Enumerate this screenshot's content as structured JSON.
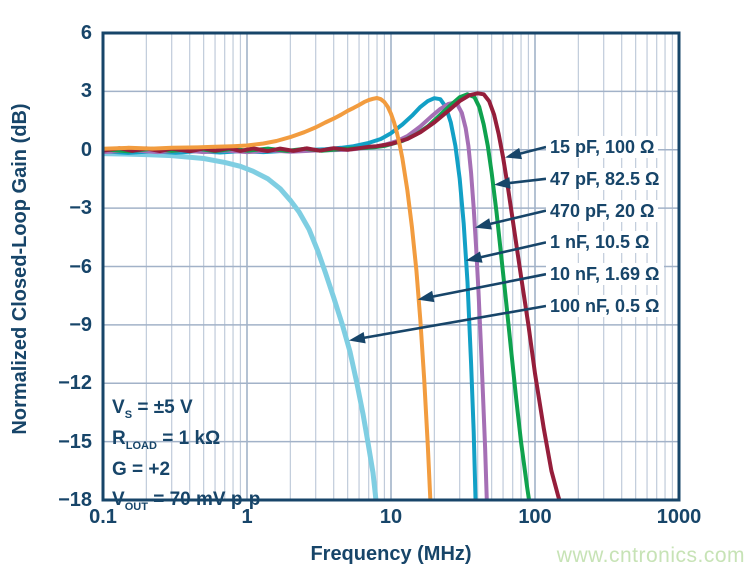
{
  "watermark": "www.cntronics.com",
  "colors": {
    "axis": "#174569",
    "grid_major": "#a2b2c8",
    "grid_minor": "#c0cbda",
    "watermark": "#c7e3b6",
    "background": "#ffffff"
  },
  "axes": {
    "x_title": "Frequency (MHz)",
    "y_title": "Normalized Closed-Loop Gain (dB)",
    "x_tick_labels": [
      "0.1",
      "1",
      "10",
      "100",
      "1000"
    ],
    "y_tick_labels": [
      "6",
      "3",
      "0",
      "−3",
      "−6",
      "−9",
      "−12",
      "−15",
      "−18"
    ]
  },
  "conditions": {
    "lines": [
      {
        "pre": "V",
        "sub": "S",
        "post": " = ±5 V"
      },
      {
        "pre": "R",
        "sub": "LOAD",
        "post": " = 1 kΩ"
      },
      {
        "pre": "G",
        "sub": "",
        "post": " = +2"
      },
      {
        "pre": "V",
        "sub": "OUT",
        "post": " = 70 mV p-p"
      }
    ]
  },
  "chart_data": {
    "type": "line",
    "title": "",
    "xlabel": "Frequency (MHz)",
    "ylabel": "Normalized Closed-Loop Gain (dB)",
    "x_scale": "log",
    "xlim": [
      0.1,
      1000
    ],
    "ylim": [
      -18,
      6
    ],
    "x_ticks": [
      0.1,
      1,
      10,
      100,
      1000
    ],
    "y_ticks": [
      6,
      3,
      0,
      -3,
      -6,
      -9,
      -12,
      -15,
      -18
    ],
    "grid": "major horizontal every 3 dB; log minor vertical gridlines",
    "legend_position": "right-side callout labels with arrows to curves",
    "annotations": [
      "VS = ±5 V",
      "RLOAD = 1 kΩ",
      "G = +2",
      "VOUT = 70 mV p-p"
    ],
    "series": [
      {
        "label": "15 pF, 100 Ω",
        "color": "#951E3B",
        "z": 4,
        "arrow_target": {
          "f_mhz": 62,
          "db": -0.4
        },
        "points": [
          [
            0.1,
            -0.05
          ],
          [
            0.13,
            0.08
          ],
          [
            0.16,
            -0.06
          ],
          [
            0.2,
            0.07
          ],
          [
            0.25,
            -0.07
          ],
          [
            0.3,
            0.06
          ],
          [
            0.4,
            -0.08
          ],
          [
            0.5,
            0.07
          ],
          [
            0.6,
            -0.05
          ],
          [
            0.75,
            0.08
          ],
          [
            0.9,
            -0.06
          ],
          [
            1.1,
            0.07
          ],
          [
            1.4,
            -0.07
          ],
          [
            1.7,
            0.06
          ],
          [
            2.1,
            -0.06
          ],
          [
            2.6,
            0.07
          ],
          [
            3.2,
            -0.05
          ],
          [
            4,
            0.08
          ],
          [
            5,
            0.0
          ],
          [
            6,
            0.08
          ],
          [
            7,
            0.15
          ],
          [
            8,
            0.18
          ],
          [
            10,
            0.3
          ],
          [
            13,
            0.55
          ],
          [
            16,
            0.9
          ],
          [
            20,
            1.4
          ],
          [
            25,
            2.0
          ],
          [
            30,
            2.5
          ],
          [
            35,
            2.8
          ],
          [
            40,
            2.9
          ],
          [
            44,
            2.85
          ],
          [
            48,
            2.5
          ],
          [
            52,
            1.8
          ],
          [
            56,
            0.8
          ],
          [
            60,
            -0.4
          ],
          [
            65,
            -2.0
          ],
          [
            70,
            -3.6
          ],
          [
            80,
            -6.5
          ],
          [
            90,
            -9.0
          ],
          [
            100,
            -11.5
          ],
          [
            115,
            -14.3
          ],
          [
            130,
            -16.5
          ],
          [
            145,
            -17.8
          ],
          [
            155,
            -18.5
          ]
        ]
      },
      {
        "label": "47 pF, 82.5 Ω",
        "color": "#0FA24E",
        "z": 3,
        "arrow_target": {
          "f_mhz": 52,
          "db": -1.8
        },
        "points": [
          [
            0.1,
            0.02
          ],
          [
            0.15,
            -0.08
          ],
          [
            0.22,
            0.05
          ],
          [
            0.3,
            -0.06
          ],
          [
            0.45,
            0.06
          ],
          [
            0.6,
            -0.07
          ],
          [
            0.8,
            0.05
          ],
          [
            1,
            -0.05
          ],
          [
            1.4,
            0.06
          ],
          [
            1.9,
            -0.06
          ],
          [
            2.5,
            0.05
          ],
          [
            3.3,
            -0.05
          ],
          [
            4.5,
            0.04
          ],
          [
            6,
            0.08
          ],
          [
            7.5,
            0.12
          ],
          [
            9,
            0.2
          ],
          [
            12,
            0.45
          ],
          [
            15,
            0.8
          ],
          [
            18,
            1.2
          ],
          [
            22,
            1.8
          ],
          [
            26,
            2.3
          ],
          [
            30,
            2.7
          ],
          [
            34,
            2.85
          ],
          [
            38,
            2.7
          ],
          [
            41,
            2.2
          ],
          [
            44,
            1.3
          ],
          [
            47,
            0.2
          ],
          [
            50,
            -1.2
          ],
          [
            54,
            -3.2
          ],
          [
            58,
            -5.3
          ],
          [
            63,
            -7.8
          ],
          [
            68,
            -10.2
          ],
          [
            74,
            -12.8
          ],
          [
            80,
            -15.0
          ],
          [
            88,
            -17.3
          ],
          [
            93,
            -18.5
          ]
        ]
      },
      {
        "label": "470 pF, 20 Ω",
        "color": "#A56FB5",
        "z": 2,
        "arrow_target": {
          "f_mhz": 38.3,
          "db": -4.0
        },
        "points": [
          [
            0.1,
            -0.12
          ],
          [
            0.16,
            -0.02
          ],
          [
            0.24,
            -0.12
          ],
          [
            0.35,
            -0.03
          ],
          [
            0.5,
            -0.12
          ],
          [
            0.7,
            -0.04
          ],
          [
            1,
            -0.12
          ],
          [
            1.5,
            -0.04
          ],
          [
            2,
            -0.1
          ],
          [
            3,
            -0.04
          ],
          [
            4,
            -0.02
          ],
          [
            5,
            0.0
          ],
          [
            7,
            0.1
          ],
          [
            9,
            0.25
          ],
          [
            11,
            0.45
          ],
          [
            13,
            0.7
          ],
          [
            16,
            1.2
          ],
          [
            19,
            1.7
          ],
          [
            22,
            2.1
          ],
          [
            25,
            2.35
          ],
          [
            27,
            2.4
          ],
          [
            29,
            2.3
          ],
          [
            31,
            1.9
          ],
          [
            33,
            1.1
          ],
          [
            34.5,
            0.2
          ],
          [
            36,
            -1.2
          ],
          [
            37.5,
            -3.0
          ],
          [
            39,
            -5.0
          ],
          [
            40.5,
            -7.3
          ],
          [
            42,
            -9.8
          ],
          [
            43.5,
            -12.5
          ],
          [
            45,
            -15.3
          ],
          [
            46.5,
            -18.5
          ]
        ]
      },
      {
        "label": "1 nF, 10.5 Ω",
        "color": "#12A0C6",
        "z": 1,
        "arrow_target": {
          "f_mhz": 33,
          "db": -5.7
        },
        "points": [
          [
            0.1,
            -0.08
          ],
          [
            0.15,
            -0.16
          ],
          [
            0.22,
            -0.08
          ],
          [
            0.32,
            -0.15
          ],
          [
            0.45,
            -0.07
          ],
          [
            0.65,
            -0.14
          ],
          [
            0.9,
            -0.07
          ],
          [
            1.3,
            -0.12
          ],
          [
            1.8,
            -0.06
          ],
          [
            2.5,
            -0.02
          ],
          [
            3.5,
            0.03
          ],
          [
            4.5,
            0.1
          ],
          [
            5.5,
            0.18
          ],
          [
            7,
            0.35
          ],
          [
            8.5,
            0.55
          ],
          [
            10,
            0.85
          ],
          [
            12,
            1.3
          ],
          [
            14,
            1.75
          ],
          [
            16,
            2.2
          ],
          [
            18,
            2.5
          ],
          [
            20,
            2.65
          ],
          [
            22,
            2.6
          ],
          [
            24,
            2.2
          ],
          [
            26,
            1.4
          ],
          [
            28,
            0.2
          ],
          [
            30,
            -1.5
          ],
          [
            32,
            -3.8
          ],
          [
            34,
            -6.8
          ],
          [
            36,
            -11.0
          ],
          [
            37.5,
            -14.5
          ],
          [
            38.8,
            -18.5
          ]
        ]
      },
      {
        "label": "10 nF, 1.69 Ω",
        "color": "#F29C3F",
        "z": 5,
        "arrow_target": {
          "f_mhz": 15.3,
          "db": -7.7
        },
        "points": [
          [
            0.1,
            0.05
          ],
          [
            0.15,
            0.1
          ],
          [
            0.22,
            0.06
          ],
          [
            0.3,
            0.1
          ],
          [
            0.45,
            0.12
          ],
          [
            0.6,
            0.15
          ],
          [
            0.8,
            0.18
          ],
          [
            1,
            0.22
          ],
          [
            1.3,
            0.32
          ],
          [
            1.6,
            0.45
          ],
          [
            2,
            0.65
          ],
          [
            2.5,
            0.9
          ],
          [
            3,
            1.15
          ],
          [
            3.5,
            1.4
          ],
          [
            4,
            1.6
          ],
          [
            4.5,
            1.8
          ],
          [
            5,
            2.0
          ],
          [
            5.5,
            2.15
          ],
          [
            6,
            2.3
          ],
          [
            6.5,
            2.45
          ],
          [
            7,
            2.55
          ],
          [
            7.5,
            2.62
          ],
          [
            8,
            2.66
          ],
          [
            8.5,
            2.6
          ],
          [
            9,
            2.45
          ],
          [
            9.5,
            2.2
          ],
          [
            10,
            1.85
          ],
          [
            10.5,
            1.4
          ],
          [
            11,
            0.85
          ],
          [
            11.5,
            0.25
          ],
          [
            12,
            -0.45
          ],
          [
            13,
            -2.1
          ],
          [
            14,
            -4.0
          ],
          [
            15,
            -6.2
          ],
          [
            16,
            -8.8
          ],
          [
            17,
            -11.8
          ],
          [
            18,
            -15.2
          ],
          [
            18.9,
            -18.5
          ]
        ]
      },
      {
        "label": "100 nF, 0.5 Ω",
        "color": "#7FCEE2",
        "z": 0,
        "arrow_target": {
          "f_mhz": 5.1,
          "db": -9.8
        },
        "points": [
          [
            0.1,
            -0.2
          ],
          [
            0.2,
            -0.25
          ],
          [
            0.3,
            -0.3
          ],
          [
            0.5,
            -0.45
          ],
          [
            0.7,
            -0.65
          ],
          [
            0.9,
            -0.85
          ],
          [
            1.1,
            -1.1
          ],
          [
            1.4,
            -1.5
          ],
          [
            1.7,
            -2.0
          ],
          [
            2.0,
            -2.6
          ],
          [
            2.3,
            -3.2
          ],
          [
            2.7,
            -4.1
          ],
          [
            3.1,
            -5.2
          ],
          [
            3.5,
            -6.3
          ],
          [
            4.0,
            -7.6
          ],
          [
            4.6,
            -9.0
          ],
          [
            5.2,
            -10.4
          ],
          [
            5.8,
            -12.0
          ],
          [
            6.4,
            -13.6
          ],
          [
            6.9,
            -15.0
          ],
          [
            7.5,
            -16.6
          ],
          [
            8.0,
            -18.5
          ]
        ]
      }
    ]
  }
}
